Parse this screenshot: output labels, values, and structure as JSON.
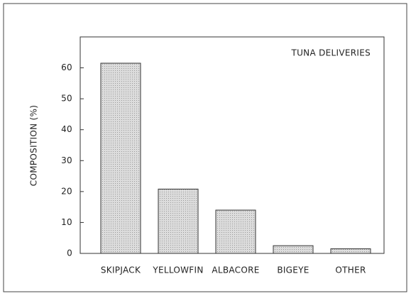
{
  "chart_data": {
    "type": "bar",
    "title": "TUNA DELIVERIES",
    "y_label": "COMPOSITION (%)",
    "categories": [
      "SKIPJACK",
      "YELLOWFIN",
      "ALBACORE",
      "BIGEYE",
      "OTHER"
    ],
    "values": [
      61.5,
      20.8,
      14.0,
      2.5,
      1.5
    ],
    "color": "#d2d2d2",
    "ylim": [
      0,
      70
    ],
    "yticks": [
      0,
      10,
      20,
      30,
      40,
      50,
      60
    ],
    "grid": false
  }
}
